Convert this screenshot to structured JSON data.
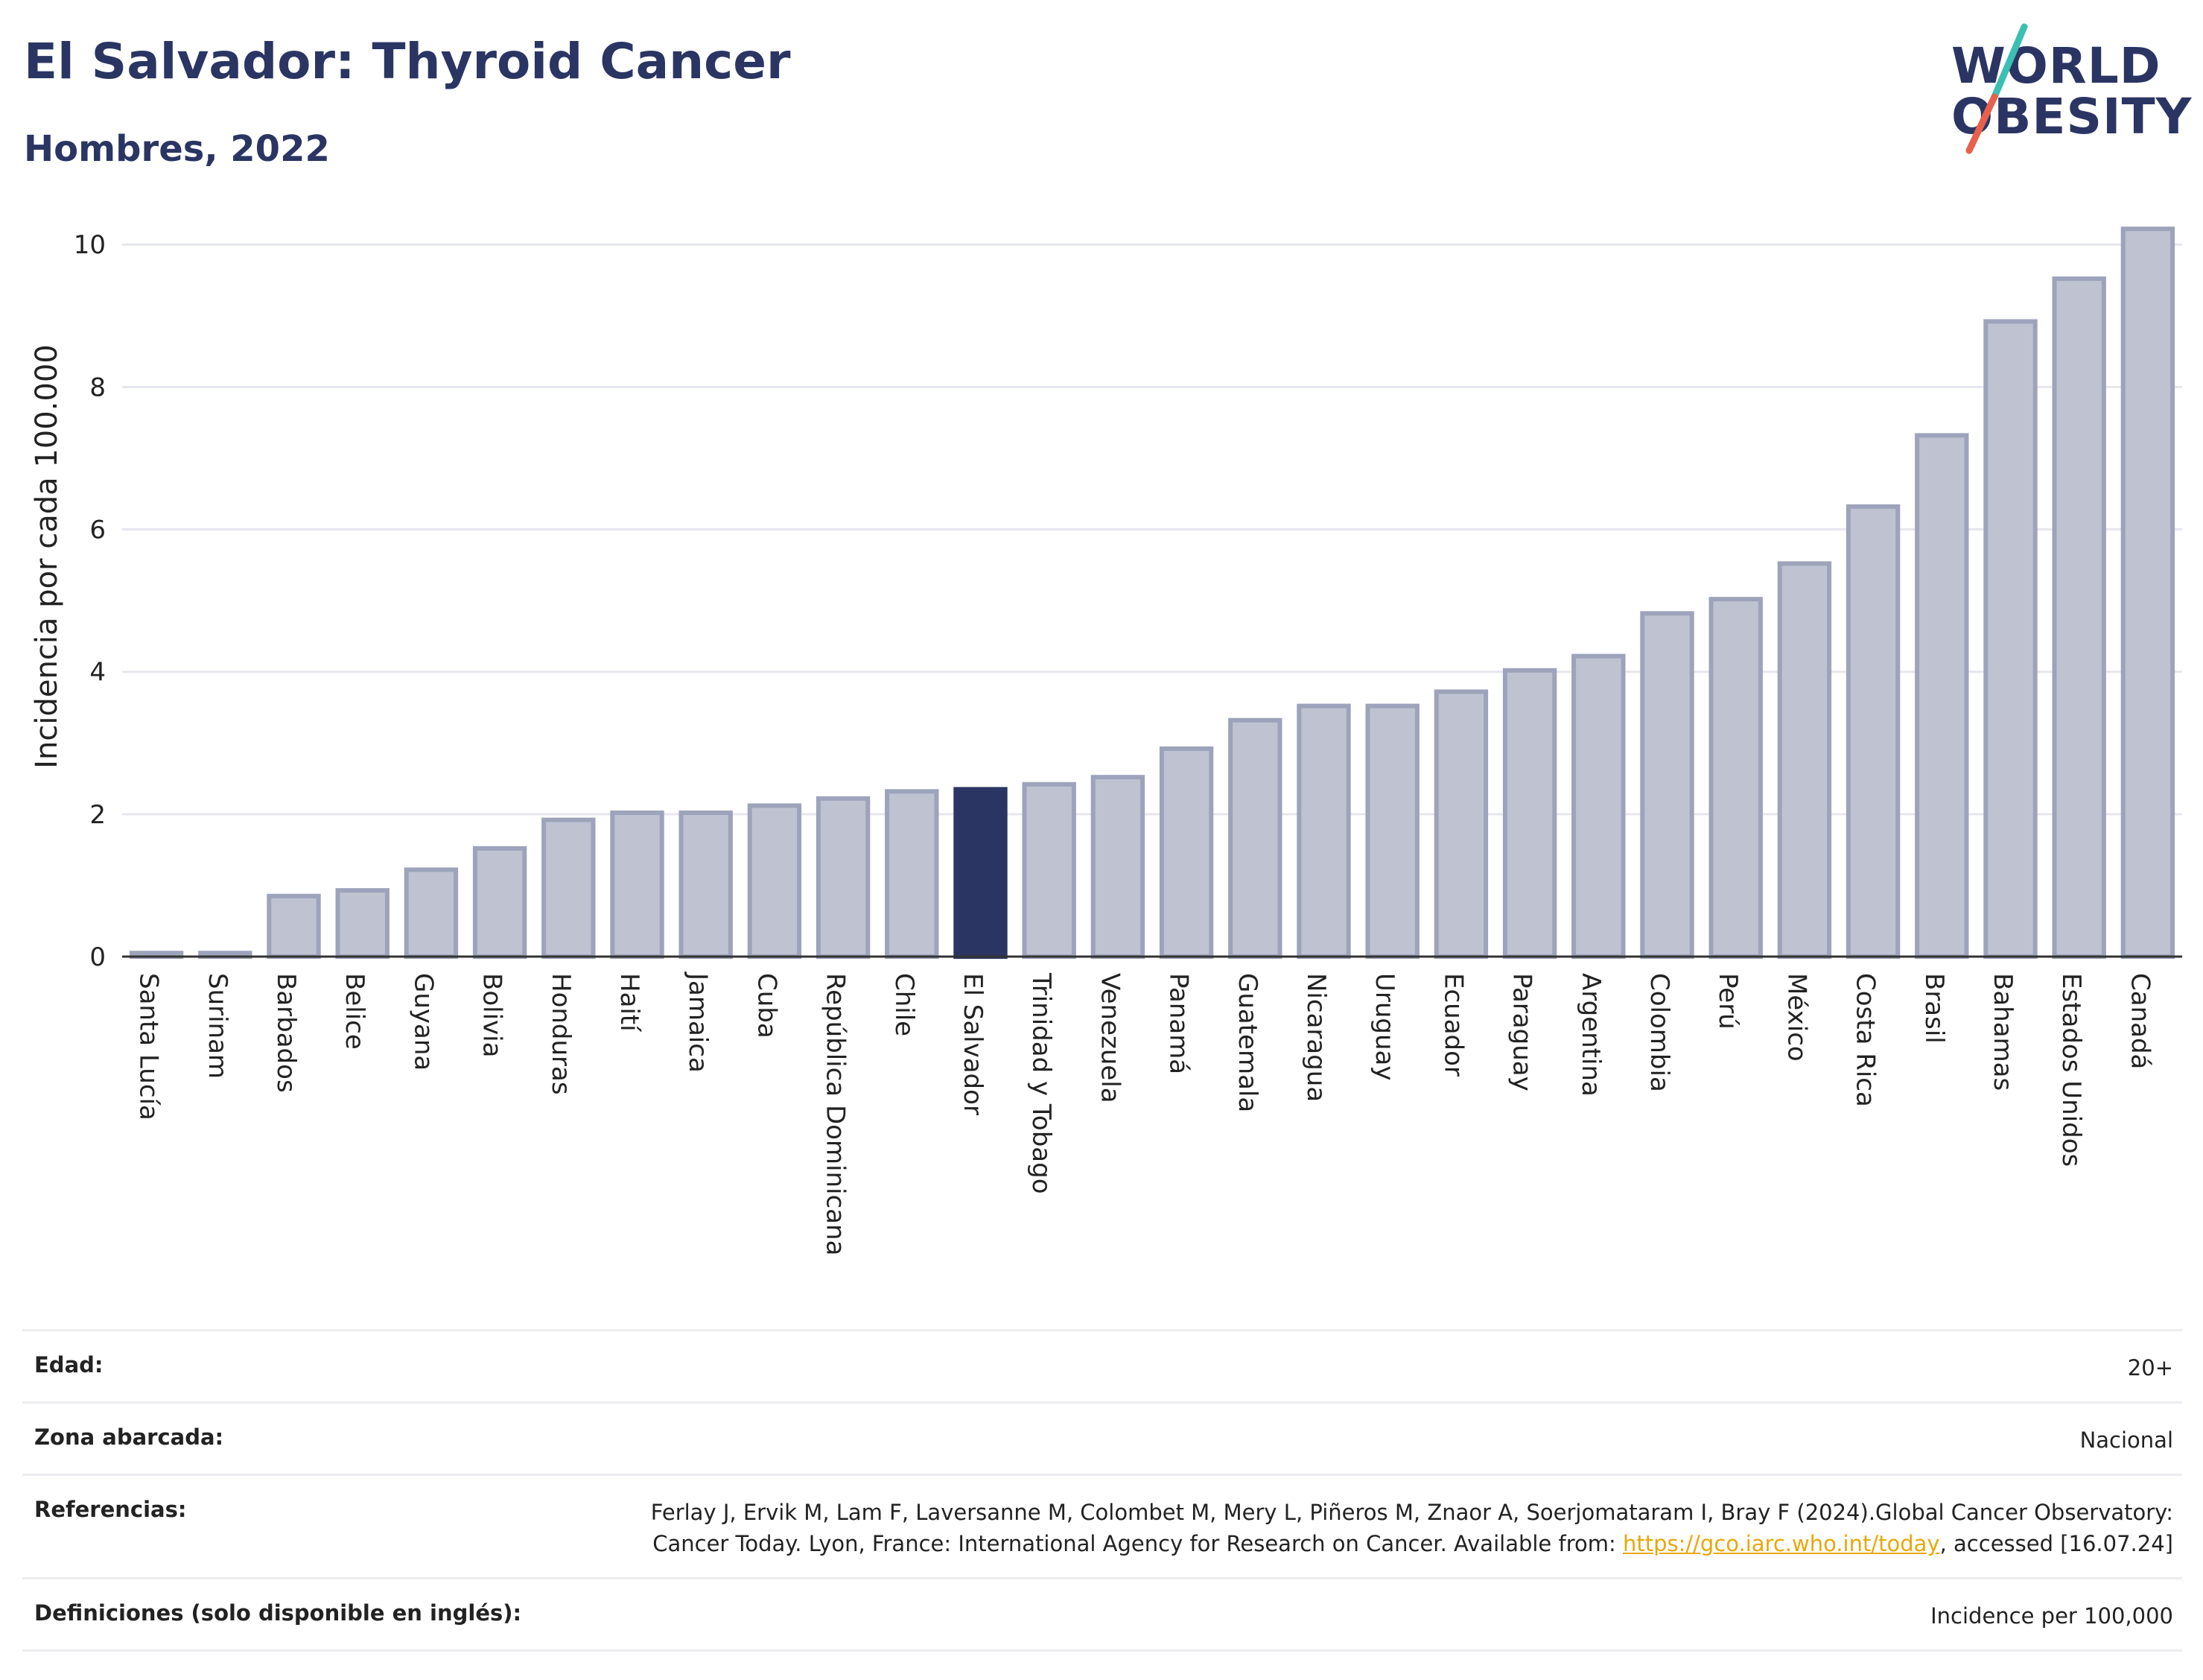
{
  "header": {
    "title": "El Salvador: Thyroid Cancer",
    "subtitle": "Hombres, 2022"
  },
  "logo": {
    "line1": "WORLD",
    "line2": "OBESITY",
    "colors": {
      "text": "#2b3563",
      "slash_top": "#3bbfb3",
      "slash_bottom": "#e8604c"
    }
  },
  "chart_data": {
    "type": "bar",
    "ylabel": "Incidencia por cada 100.000",
    "xlabel": "",
    "ylim": [
      0,
      10.4
    ],
    "yticks": [
      0,
      2,
      4,
      6,
      8,
      10
    ],
    "grid": true,
    "highlight": "El Salvador",
    "colors": {
      "bar": "#bfc3d1",
      "bar_border": "#9da3ba",
      "highlight": "#2b3563"
    },
    "categories": [
      "Santa Lucía",
      "Surinam",
      "Barbados",
      "Belice",
      "Guyana",
      "Bolivia",
      "Honduras",
      "Haití",
      "Jamaica",
      "Cuba",
      "República Dominicana",
      "Chile",
      "El Salvador",
      "Trinidad y Tobago",
      "Venezuela",
      "Panamá",
      "Guatemala",
      "Nicaragua",
      "Uruguay",
      "Ecuador",
      "Paraguay",
      "Argentina",
      "Colombia",
      "Perú",
      "México",
      "Costa Rica",
      "Brasil",
      "Bahamas",
      "Estados Unidos",
      "Canadá"
    ],
    "values": [
      0.05,
      0.05,
      0.85,
      0.93,
      1.22,
      1.52,
      1.92,
      2.02,
      2.02,
      2.12,
      2.22,
      2.32,
      2.35,
      2.42,
      2.52,
      2.92,
      3.32,
      3.52,
      3.52,
      3.72,
      4.02,
      4.22,
      4.82,
      5.02,
      5.52,
      6.32,
      7.32,
      8.92,
      9.52,
      10.22
    ]
  },
  "meta": {
    "age_label": "Edad:",
    "age_value": "20+",
    "area_label": "Zona abarcada:",
    "area_value": "Nacional",
    "refs_label": "Referencias:",
    "refs_text_before": "Ferlay J, Ervik M, Lam F, Laversanne M, Colombet M, Mery L, Piñeros M, Znaor A, Soerjomataram I, Bray F (2024).Global Cancer Observatory: Cancer Today. Lyon, France: International Agency for Research on Cancer. Available from: ",
    "refs_link": "https://gco.iarc.who.int/today",
    "refs_text_after": ", accessed [16.07.24]",
    "defs_label": "Definiciones (solo disponible en inglés):",
    "defs_value": "Incidence per 100,000"
  }
}
